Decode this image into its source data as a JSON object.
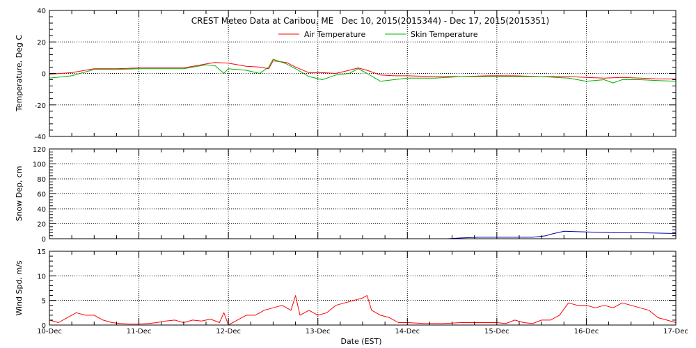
{
  "chart_data": {
    "title": "CREST Meteo Data at Caribou, ME   Dec 10, 2015(2015344) - Dec 17, 2015(2015351)",
    "xlabel": "Date (EST)",
    "x_ticks": [
      "10-Dec",
      "11-Dec",
      "12-Dec",
      "13-Dec",
      "14-Dec",
      "15-Dec",
      "16-Dec",
      "17-Dec"
    ],
    "xlim_days": [
      10,
      17
    ],
    "grid": true,
    "panels": [
      {
        "type": "line",
        "ylabel": "Temperature, Deg C",
        "ylim": [
          -40,
          40
        ],
        "y_ticks": [
          -40,
          -20,
          0,
          20,
          40
        ],
        "legend_position": "top-center",
        "series": [
          {
            "name": "Air Temperature",
            "color": "#ff0000",
            "x": [
              10.0,
              10.25,
              10.5,
              10.75,
              11.0,
              11.25,
              11.5,
              11.75,
              11.85,
              12.0,
              12.2,
              12.35,
              12.45,
              12.5,
              12.65,
              12.75,
              12.9,
              13.05,
              13.2,
              13.35,
              13.45,
              13.55,
              13.7,
              13.85,
              14.0,
              14.3,
              14.6,
              14.9,
              15.2,
              15.5,
              15.8,
              16.0,
              16.2,
              16.4,
              16.6,
              16.8,
              17.0
            ],
            "y": [
              -0.5,
              0.5,
              3,
              3,
              3.5,
              3.5,
              3.5,
              6,
              7,
              6.5,
              4.5,
              4,
              3,
              8,
              7,
              4,
              0.5,
              0.5,
              0,
              2,
              3.5,
              2,
              -1,
              -1.5,
              -1.5,
              -2,
              -2,
              -1.5,
              -1.5,
              -2,
              -2,
              -2.5,
              -3,
              -2.5,
              -3,
              -3.5,
              -3.5
            ]
          },
          {
            "name": "Skin Temperature",
            "color": "#00b000",
            "x": [
              10.0,
              10.25,
              10.5,
              10.75,
              11.0,
              11.25,
              11.5,
              11.75,
              11.85,
              11.95,
              12.0,
              12.2,
              12.35,
              12.45,
              12.5,
              12.65,
              12.75,
              12.9,
              13.05,
              13.2,
              13.35,
              13.45,
              13.55,
              13.7,
              13.85,
              14.0,
              14.3,
              14.6,
              14.9,
              15.2,
              15.5,
              15.8,
              16.0,
              16.2,
              16.3,
              16.4,
              16.6,
              16.8,
              17.0
            ],
            "y": [
              -3,
              -1.5,
              2.5,
              2.5,
              3,
              3,
              3,
              5.5,
              5,
              0,
              3,
              2,
              0,
              4,
              9,
              6,
              3,
              -2,
              -4,
              -1,
              0,
              3,
              0,
              -5,
              -4,
              -3,
              -3,
              -2,
              -2,
              -2,
              -2,
              -3,
              -5,
              -4,
              -6,
              -4,
              -4,
              -4.5,
              -5
            ]
          }
        ]
      },
      {
        "type": "line",
        "ylabel": "Snow Dep, cm",
        "ylim": [
          0,
          120
        ],
        "y_ticks": [
          0,
          20,
          40,
          60,
          80,
          100,
          120
        ],
        "series": [
          {
            "color": "#0000a0",
            "x": [
              14.45,
              14.6,
              14.8,
              15.0,
              15.2,
              15.4,
              15.55,
              15.6,
              15.75,
              16.0,
              16.3,
              16.6,
              17.0
            ],
            "y": [
              0,
              1,
              2,
              2,
              2,
              2,
              4,
              6,
              10,
              9,
              8,
              8,
              7
            ]
          }
        ]
      },
      {
        "type": "line",
        "ylabel": "Wind Spd, m/s",
        "ylim": [
          0,
          15
        ],
        "y_ticks": [
          0,
          5,
          10,
          15
        ],
        "series": [
          {
            "color": "#ff0000",
            "x": [
              10.0,
              10.1,
              10.2,
              10.3,
              10.4,
              10.5,
              10.6,
              10.7,
              10.8,
              10.9,
              11.0,
              11.1,
              11.2,
              11.3,
              11.4,
              11.5,
              11.6,
              11.7,
              11.8,
              11.9,
              11.95,
              12.0,
              12.1,
              12.2,
              12.3,
              12.4,
              12.5,
              12.6,
              12.7,
              12.75,
              12.8,
              12.9,
              13.0,
              13.1,
              13.2,
              13.3,
              13.4,
              13.5,
              13.55,
              13.6,
              13.7,
              13.8,
              13.9,
              14.0,
              14.2,
              14.4,
              14.6,
              14.8,
              15.0,
              15.1,
              15.2,
              15.3,
              15.4,
              15.5,
              15.6,
              15.7,
              15.8,
              15.9,
              16.0,
              16.1,
              16.2,
              16.3,
              16.4,
              16.5,
              16.6,
              16.7,
              16.8,
              16.9,
              17.0
            ],
            "y": [
              1,
              0.5,
              1.5,
              2.5,
              2,
              2,
              1,
              0.5,
              0.3,
              0.2,
              0.2,
              0.3,
              0.5,
              0.8,
              1,
              0.5,
              1,
              0.8,
              1.2,
              0.5,
              2.5,
              0,
              1,
              2,
              2,
              3,
              3.5,
              4,
              3,
              6,
              2,
              3,
              2,
              2.5,
              4,
              4.5,
              5,
              5.5,
              6,
              3,
              2,
              1.5,
              0.5,
              0.5,
              0.3,
              0.3,
              0.5,
              0.5,
              0.5,
              0.3,
              1,
              0.5,
              0.3,
              1,
              1,
              2,
              4.5,
              4,
              4,
              3.5,
              4,
              3.5,
              4.5,
              4,
              3.5,
              3,
              1.5,
              1,
              0.5
            ]
          }
        ]
      }
    ]
  }
}
